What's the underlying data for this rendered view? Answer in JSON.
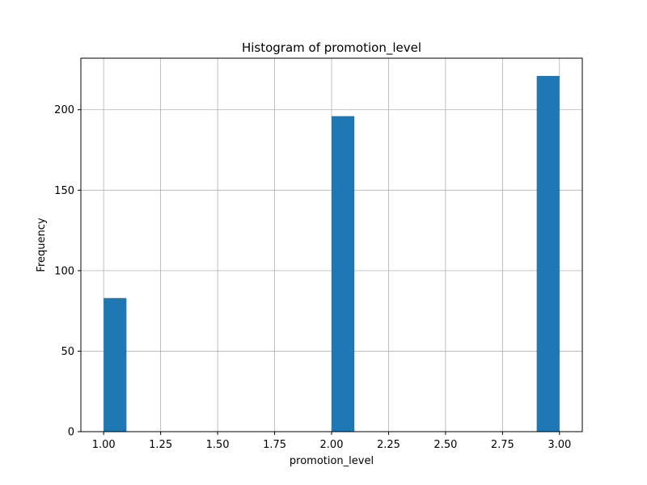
{
  "chart_data": {
    "type": "bar",
    "title": "Histogram of promotion_level",
    "xlabel": "promotion_level",
    "ylabel": "Frequency",
    "xlim": [
      0.9,
      3.1
    ],
    "ylim": [
      0,
      232
    ],
    "grid": true,
    "bar_color": "#1f77b4",
    "grid_color": "#b0b0b0",
    "x_ticks": [
      1.0,
      1.25,
      1.5,
      1.75,
      2.0,
      2.25,
      2.5,
      2.75,
      3.0
    ],
    "x_tick_labels": [
      "1.00",
      "1.25",
      "1.50",
      "1.75",
      "2.00",
      "2.25",
      "2.50",
      "2.75",
      "3.00"
    ],
    "y_ticks": [
      0,
      50,
      100,
      150,
      200
    ],
    "y_tick_labels": [
      "0",
      "50",
      "100",
      "150",
      "200"
    ],
    "bins": [
      {
        "x0": 1.0,
        "x1": 1.1,
        "count": 83
      },
      {
        "x0": 2.0,
        "x1": 2.1,
        "count": 196
      },
      {
        "x0": 2.9,
        "x1": 3.0,
        "count": 221
      }
    ]
  }
}
